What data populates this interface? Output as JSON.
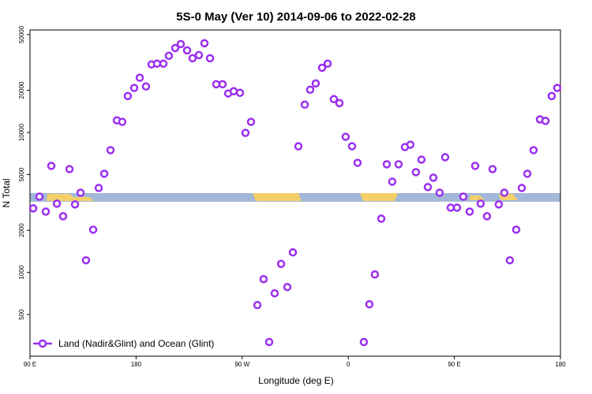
{
  "chart_data": {
    "type": "scatter",
    "title": "5S-0 May (Ver 10)   2014-09-06 to 2022-02-28",
    "xlabel": "Longitude (deg E)",
    "ylabel": "N Total",
    "xlim": [
      90,
      540
    ],
    "ylim": [
      252,
      54000
    ],
    "log_y": true,
    "legend": "lower left",
    "xticks": [
      {
        "value": 90,
        "label": "90 E"
      },
      180,
      {
        "value": 270,
        "label": "90 W"
      },
      {
        "value": 360,
        "label": "0"
      },
      {
        "value": 450,
        "label": "90 E"
      },
      {
        "value": 540,
        "label": "180"
      }
    ],
    "yticks": [
      500,
      1000,
      2000,
      5000,
      10000,
      20000,
      50000
    ],
    "series": [
      {
        "name": "Land (Nadir&Glint) and Ocean (Glint)",
        "color": "#9b30f0",
        "x": [
          92.7,
          98.0,
          103.4,
          108.1,
          112.8,
          118.1,
          123.5,
          128.2,
          132.9,
          137.5,
          143.6,
          148.3,
          153.0,
          158.3,
          163.7,
          168.3,
          173.0,
          178.4,
          183.1,
          188.4,
          193.1,
          197.8,
          203.2,
          207.8,
          213.2,
          217.9,
          223.3,
          227.9,
          233.3,
          238.0,
          242.7,
          248.0,
          253.4,
          258.1,
          262.8,
          268.1,
          272.8,
          277.5,
          282.9,
          288.2,
          292.9,
          297.6,
          303.0,
          308.3,
          313.0,
          317.7,
          323.1,
          327.7,
          332.4,
          337.8,
          342.5,
          347.8,
          352.5,
          357.8,
          363.2,
          367.9,
          373.2,
          377.9,
          382.6,
          388.0,
          392.7,
          397.3,
          402.7,
          408.1,
          412.7,
          417.4,
          422.1,
          427.5,
          432.2,
          437.5,
          442.2,
          446.9,
          452.3,
          457.6,
          463.0,
          467.7,
          472.3,
          477.7,
          482.4,
          487.7,
          492.4,
          497.1,
          502.5,
          507.2,
          511.9,
          517.2,
          522.6,
          527.3,
          532.6,
          537.3
        ],
        "values": [
          2870,
          3480,
          2720,
          5770,
          3100,
          2520,
          5470,
          3060,
          3710,
          1220,
          2020,
          4010,
          5070,
          7470,
          12200,
          11900,
          18200,
          20800,
          24600,
          21300,
          30600,
          31000,
          31000,
          35300,
          40100,
          42800,
          38600,
          33900,
          35700,
          43400,
          33900,
          22100,
          22100,
          19000,
          19700,
          19200,
          9930,
          11900,
          584,
          895,
          318,
          709,
          1150,
          786,
          1390,
          7960,
          15800,
          20200,
          22400,
          29000,
          31000,
          17300,
          16200,
          9310,
          7960,
          6070,
          318,
          592,
          967,
          2420,
          5920,
          4450,
          5920,
          7860,
          8180,
          5200,
          6390,
          4070,
          4750,
          3710,
          6650,
          2900,
          2900,
          3480,
          2720,
          5770,
          3100,
          2520,
          5470,
          3060,
          3710,
          1220,
          2020,
          4010,
          5070,
          7470,
          12400,
          12100,
          18200,
          20800
        ]
      }
    ]
  }
}
